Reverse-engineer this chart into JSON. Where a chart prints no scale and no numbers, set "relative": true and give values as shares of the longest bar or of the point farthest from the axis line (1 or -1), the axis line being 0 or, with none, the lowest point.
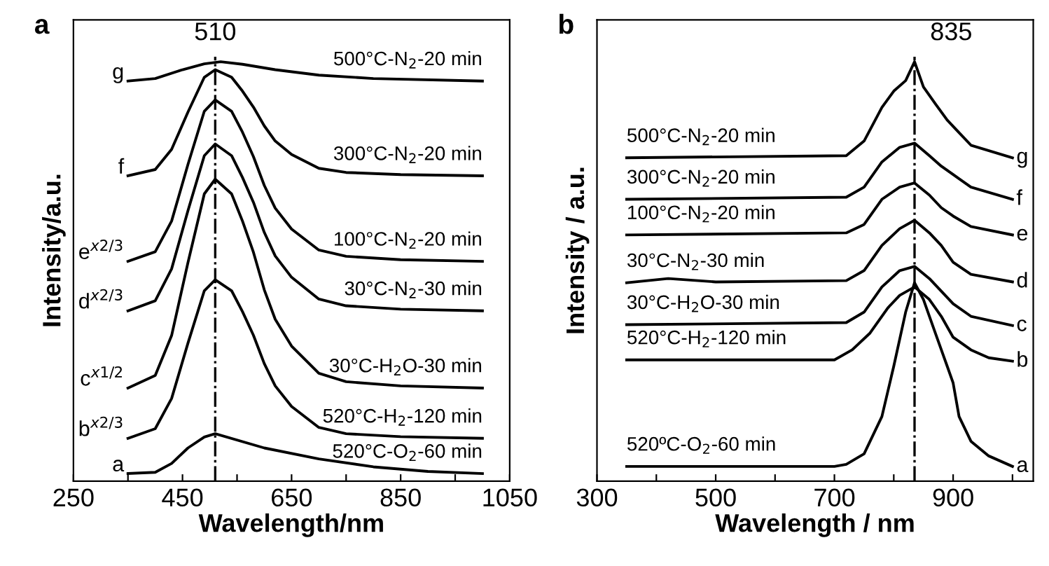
{
  "chart_data": [
    {
      "type": "line",
      "title": "a",
      "xlabel": "Wavelength/nm",
      "ylabel": "Intensity/a.u.",
      "relative": true,
      "xlim": [
        250,
        1050
      ],
      "xticks": [
        250,
        {
          "value": 350,
          "label": null
        },
        450,
        {
          "value": 550,
          "label": null
        },
        650,
        {
          "value": 750,
          "label": null
        },
        850,
        {
          "value": 950,
          "label": null
        },
        1050
      ],
      "grid": false,
      "legend": false,
      "line_style": "solid",
      "marker": "none",
      "ref_lines": [
        {
          "axis": "x",
          "value": 510,
          "label": "510",
          "line_style": "dashdot",
          "color": "#000000"
        }
      ],
      "series": [
        {
          "name": "a",
          "color": "#000000",
          "x": [
            350,
            400,
            430,
            460,
            490,
            510,
            600,
            700,
            800,
            900,
            1000
          ],
          "values": [
            0.018,
            0.021,
            0.042,
            0.079,
            0.105,
            0.113,
            0.079,
            0.053,
            0.034,
            0.023,
            0.018
          ]
        },
        {
          "name": "b$^{x2/3}$",
          "color": "#000000",
          "x": [
            350,
            400,
            430,
            460,
            490,
            510,
            540,
            560,
            580,
            600,
            620,
            650,
            700,
            750,
            850,
            1000
          ],
          "values": [
            0.102,
            0.125,
            0.197,
            0.329,
            0.454,
            0.48,
            0.454,
            0.404,
            0.348,
            0.28,
            0.227,
            0.178,
            0.128,
            0.113,
            0.106,
            0.102
          ]
        },
        {
          "name": "c$^{x1/2}$",
          "color": "#000000",
          "x": [
            350,
            400,
            430,
            460,
            490,
            510,
            540,
            560,
            580,
            600,
            620,
            650,
            700,
            750,
            850,
            1000
          ],
          "values": [
            0.222,
            0.252,
            0.347,
            0.521,
            0.685,
            0.72,
            0.685,
            0.62,
            0.546,
            0.456,
            0.386,
            0.322,
            0.257,
            0.237,
            0.227,
            0.222
          ]
        },
        {
          "name": "d$^{x2/3}$",
          "color": "#000000",
          "x": [
            350,
            400,
            430,
            460,
            490,
            510,
            540,
            560,
            580,
            600,
            620,
            650,
            700,
            750,
            850,
            1000
          ],
          "values": [
            0.406,
            0.43,
            0.506,
            0.645,
            0.776,
            0.804,
            0.776,
            0.724,
            0.665,
            0.593,
            0.537,
            0.486,
            0.434,
            0.418,
            0.41,
            0.406
          ]
        },
        {
          "name": "e$^{x2/3}$",
          "color": "#000000",
          "x": [
            350,
            400,
            430,
            460,
            490,
            510,
            540,
            560,
            580,
            600,
            620,
            650,
            700,
            750,
            850,
            1000
          ],
          "values": [
            0.524,
            0.547,
            0.62,
            0.755,
            0.882,
            0.909,
            0.882,
            0.832,
            0.774,
            0.705,
            0.651,
            0.601,
            0.551,
            0.536,
            0.528,
            0.524
          ]
        },
        {
          "name": "f",
          "color": "#000000",
          "x": [
            350,
            400,
            430,
            460,
            490,
            510,
            540,
            560,
            580,
            600,
            620,
            650,
            700,
            750,
            850,
            1000
          ],
          "values": [
            0.728,
            0.743,
            0.791,
            0.88,
            0.963,
            0.981,
            0.963,
            0.93,
            0.892,
            0.847,
            0.811,
            0.779,
            0.746,
            0.736,
            0.731,
            0.728
          ]
        },
        {
          "name": "g",
          "color": "#000000",
          "x": [
            350,
            400,
            450,
            490,
            520,
            560,
            620,
            700,
            800,
            1000
          ],
          "values": [
            0.954,
            0.96,
            0.981,
            0.995,
            1.0,
            0.994,
            0.981,
            0.968,
            0.96,
            0.954
          ]
        }
      ],
      "annotations": [
        "520°C-O$_{2}$-60 min",
        "520°C-H$_{2}$-120 min",
        "30°C-H$_{2}$O-30 min",
        "30°C-N$_{2}$-30 min",
        "100°C-N$_{2}$-20 min",
        "300°C-N$_{2}$-20 min",
        "500°C-N$_{2}$-20 min"
      ]
    },
    {
      "type": "line",
      "title": "b",
      "xlabel": "Wavelength / nm",
      "ylabel": "Intensity / a.u.",
      "relative": true,
      "xlim": [
        300,
        1035
      ],
      "xticks": [
        300,
        {
          "value": 400,
          "label": null
        },
        500,
        {
          "value": 600,
          "label": null
        },
        700,
        {
          "value": 800,
          "label": null
        },
        900,
        {
          "value": 1000,
          "label": null
        }
      ],
      "grid": false,
      "legend": false,
      "line_style": "solid",
      "marker": "none",
      "ref_lines": [
        {
          "axis": "x",
          "value": 835,
          "label": "835",
          "line_style": "dashdot",
          "color": "#000000"
        }
      ],
      "series": [
        {
          "name": "a",
          "color": "#000000",
          "x": [
            350,
            700,
            720,
            750,
            780,
            800,
            820,
            835,
            850,
            870,
            890,
            900,
            910,
            930,
            960,
            1000
          ],
          "values": [
            0.035,
            0.035,
            0.04,
            0.065,
            0.154,
            0.274,
            0.403,
            0.473,
            0.433,
            0.353,
            0.274,
            0.234,
            0.154,
            0.095,
            0.06,
            0.035
          ]
        },
        {
          "name": "b",
          "color": "#000000",
          "x": [
            350,
            700,
            730,
            760,
            790,
            810,
            835,
            860,
            880,
            900,
            930,
            960,
            1000
          ],
          "values": [
            0.289,
            0.289,
            0.313,
            0.353,
            0.413,
            0.443,
            0.463,
            0.433,
            0.393,
            0.343,
            0.313,
            0.294,
            0.286
          ]
        },
        {
          "name": "c",
          "color": "#000000",
          "x": [
            350,
            720,
            750,
            780,
            810,
            835,
            860,
            880,
            900,
            930,
            1000
          ],
          "values": [
            0.373,
            0.378,
            0.403,
            0.463,
            0.502,
            0.512,
            0.483,
            0.453,
            0.423,
            0.393,
            0.371
          ]
        },
        {
          "name": "d",
          "color": "#000000",
          "x": [
            350,
            420,
            500,
            720,
            750,
            780,
            810,
            835,
            860,
            880,
            900,
            930,
            1000
          ],
          "values": [
            0.473,
            0.483,
            0.475,
            0.478,
            0.502,
            0.562,
            0.602,
            0.622,
            0.592,
            0.562,
            0.522,
            0.493,
            0.475
          ]
        },
        {
          "name": "e",
          "color": "#000000",
          "x": [
            350,
            720,
            750,
            780,
            810,
            835,
            860,
            880,
            900,
            930,
            1000
          ],
          "values": [
            0.587,
            0.592,
            0.612,
            0.672,
            0.701,
            0.711,
            0.682,
            0.652,
            0.632,
            0.607,
            0.587
          ]
        },
        {
          "name": "f",
          "color": "#000000",
          "x": [
            350,
            720,
            750,
            780,
            810,
            835,
            860,
            880,
            900,
            930,
            1000
          ],
          "values": [
            0.672,
            0.677,
            0.701,
            0.761,
            0.796,
            0.806,
            0.776,
            0.751,
            0.731,
            0.701,
            0.672
          ]
        },
        {
          "name": "g",
          "color": "#000000",
          "x": [
            350,
            720,
            750,
            780,
            800,
            820,
            835,
            850,
            870,
            890,
            910,
            930,
            1000
          ],
          "values": [
            0.771,
            0.776,
            0.811,
            0.891,
            0.93,
            0.955,
            1.0,
            0.94,
            0.9,
            0.861,
            0.831,
            0.801,
            0.771
          ]
        }
      ],
      "annotations": [
        "520ºC-O$_{2}$-60 min",
        "520°C-H$_{2}$-120 min",
        "30°C-H$_{2}$O-30 min",
        "30°C-N$_{2}$-30 min",
        "100°C-N$_{2}$-20 min",
        "300°C-N$_{2}$-20 min",
        "500°C-N$_{2}$-20 min"
      ]
    }
  ]
}
